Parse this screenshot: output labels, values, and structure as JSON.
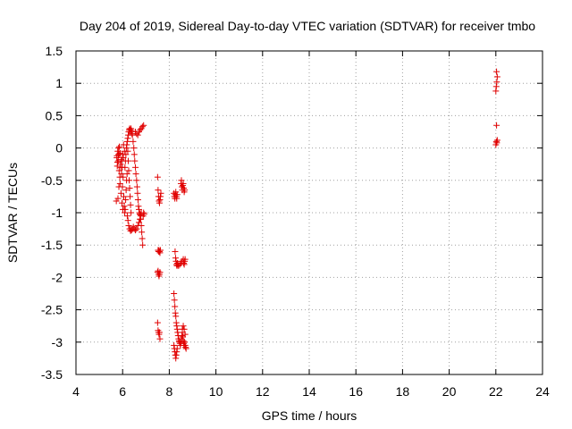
{
  "chart_data": {
    "type": "scatter",
    "title": "Day 204 of 2019, Sidereal Day-to-day VTEC variation (SDTVAR) for receiver tmbo",
    "xlabel": "GPS time / hours",
    "ylabel": "SDTVAR / TECUs",
    "xlim": [
      4,
      24
    ],
    "ylim": [
      -3.5,
      1.5
    ],
    "xticks": [
      4,
      6,
      8,
      10,
      12,
      14,
      16,
      18,
      20,
      22,
      24
    ],
    "yticks": [
      -3.5,
      -3,
      -2.5,
      -2,
      -1.5,
      -1,
      -0.5,
      0,
      0.5,
      1,
      1.5
    ],
    "xtick_labels": [
      "4",
      "6",
      "8",
      "10",
      "12",
      "14",
      "16",
      "18",
      "20",
      "22",
      "24"
    ],
    "ytick_labels": [
      "-3.5",
      "-3",
      "-2.5",
      "-2",
      "-1.5",
      "-1",
      "-0.5",
      "0",
      "0.5",
      "1",
      "1.5"
    ],
    "grid": true,
    "marker": "+",
    "color": "#e00000",
    "series": [
      {
        "name": "SDTVAR",
        "points": [
          [
            5.73,
            -0.82
          ],
          [
            5.75,
            -0.15
          ],
          [
            5.77,
            -0.28
          ],
          [
            5.79,
            -0.05
          ],
          [
            5.81,
            -0.2
          ],
          [
            5.83,
            0.0
          ],
          [
            5.85,
            -0.35
          ],
          [
            5.87,
            -0.1
          ],
          [
            5.89,
            -0.55
          ],
          [
            5.91,
            -0.25
          ],
          [
            5.93,
            -0.7
          ],
          [
            5.95,
            -0.4
          ],
          [
            5.97,
            -0.85
          ],
          [
            5.99,
            -0.6
          ],
          [
            6.01,
            -0.95
          ],
          [
            6.03,
            -0.15
          ],
          [
            5.8,
            -0.78
          ],
          [
            5.84,
            -0.6
          ],
          [
            5.88,
            -0.45
          ],
          [
            5.92,
            -0.3
          ],
          [
            5.96,
            -0.2
          ],
          [
            6.0,
            -0.1
          ],
          [
            6.04,
            0.05
          ],
          [
            6.08,
            -0.05
          ],
          [
            6.05,
            -0.75
          ],
          [
            6.07,
            -0.9
          ],
          [
            6.09,
            -1.0
          ],
          [
            6.11,
            -0.95
          ],
          [
            6.13,
            -0.8
          ],
          [
            6.15,
            -0.65
          ],
          [
            6.17,
            -0.5
          ],
          [
            6.19,
            -0.4
          ],
          [
            6.1,
            -0.3
          ],
          [
            6.12,
            -0.2
          ],
          [
            6.14,
            -0.1
          ],
          [
            6.16,
            0.0
          ],
          [
            6.18,
            0.05
          ],
          [
            6.2,
            0.1
          ],
          [
            6.22,
            0.15
          ],
          [
            6.24,
            0.2
          ],
          [
            6.26,
            0.25
          ],
          [
            6.28,
            0.28
          ],
          [
            6.3,
            0.3
          ],
          [
            6.32,
            0.28
          ],
          [
            6.34,
            0.25
          ],
          [
            6.36,
            0.3
          ],
          [
            6.38,
            0.27
          ],
          [
            6.4,
            0.22
          ],
          [
            6.22,
            -0.05
          ],
          [
            6.24,
            -0.2
          ],
          [
            6.26,
            -0.35
          ],
          [
            6.28,
            -0.5
          ],
          [
            6.3,
            -0.62
          ],
          [
            6.32,
            -0.75
          ],
          [
            6.34,
            -0.88
          ],
          [
            6.36,
            -1.0
          ],
          [
            6.2,
            -1.05
          ],
          [
            6.23,
            -1.12
          ],
          [
            6.26,
            -1.2
          ],
          [
            6.3,
            -1.25
          ],
          [
            6.34,
            -1.28
          ],
          [
            6.38,
            -1.27
          ],
          [
            6.42,
            -1.25
          ],
          [
            6.46,
            -1.22
          ],
          [
            6.5,
            -1.25
          ],
          [
            6.55,
            -1.27
          ],
          [
            6.6,
            -1.25
          ],
          [
            6.65,
            -1.2
          ],
          [
            6.7,
            -1.15
          ],
          [
            6.74,
            -1.1
          ],
          [
            6.78,
            -1.05
          ],
          [
            6.8,
            -1.0
          ],
          [
            6.42,
            0.2
          ],
          [
            6.45,
            0.1
          ],
          [
            6.48,
            0.0
          ],
          [
            6.5,
            -0.1
          ],
          [
            6.52,
            -0.2
          ],
          [
            6.55,
            -0.3
          ],
          [
            6.57,
            -0.4
          ],
          [
            6.6,
            -0.5
          ],
          [
            6.62,
            -0.6
          ],
          [
            6.64,
            -0.7
          ],
          [
            6.66,
            -0.8
          ],
          [
            6.68,
            -0.9
          ],
          [
            6.7,
            -0.95
          ],
          [
            6.72,
            -1.0
          ],
          [
            6.74,
            -1.02
          ],
          [
            6.76,
            -1.03
          ],
          [
            6.55,
            0.25
          ],
          [
            6.6,
            0.22
          ],
          [
            6.65,
            0.2
          ],
          [
            6.7,
            0.25
          ],
          [
            6.75,
            0.28
          ],
          [
            6.8,
            0.3
          ],
          [
            6.85,
            0.33
          ],
          [
            6.9,
            0.35
          ],
          [
            6.78,
            -1.1
          ],
          [
            6.8,
            -1.2
          ],
          [
            6.82,
            -1.3
          ],
          [
            6.84,
            -1.4
          ],
          [
            6.86,
            -1.5
          ],
          [
            6.88,
            -1.05
          ],
          [
            6.9,
            -1.0
          ],
          [
            6.92,
            -1.02
          ],
          [
            5.76,
            -0.12
          ],
          [
            5.78,
            -0.22
          ],
          [
            5.82,
            -0.1
          ],
          [
            5.86,
            0.02
          ],
          [
            5.9,
            -0.08
          ],
          [
            5.94,
            -0.18
          ],
          [
            5.98,
            -0.3
          ],
          [
            6.02,
            -0.45
          ],
          [
            7.5,
            -0.45
          ],
          [
            7.52,
            -0.65
          ],
          [
            7.54,
            -0.75
          ],
          [
            7.56,
            -0.82
          ],
          [
            7.58,
            -0.85
          ],
          [
            7.6,
            -0.8
          ],
          [
            7.62,
            -0.75
          ],
          [
            7.64,
            -0.7
          ],
          [
            7.52,
            -1.58
          ],
          [
            7.54,
            -1.6
          ],
          [
            7.56,
            -1.58
          ],
          [
            7.58,
            -1.6
          ],
          [
            7.6,
            -1.62
          ],
          [
            7.62,
            -1.58
          ],
          [
            7.5,
            -1.92
          ],
          [
            7.52,
            -1.9
          ],
          [
            7.54,
            -1.95
          ],
          [
            7.56,
            -1.98
          ],
          [
            7.58,
            -1.95
          ],
          [
            7.6,
            -1.92
          ],
          [
            7.5,
            -2.7
          ],
          [
            7.52,
            -2.82
          ],
          [
            7.54,
            -2.85
          ],
          [
            7.56,
            -2.88
          ],
          [
            7.58,
            -2.85
          ],
          [
            7.6,
            -2.95
          ],
          [
            8.2,
            -0.7
          ],
          [
            8.22,
            -0.75
          ],
          [
            8.24,
            -0.78
          ],
          [
            8.26,
            -0.72
          ],
          [
            8.28,
            -0.68
          ],
          [
            8.3,
            -0.75
          ],
          [
            8.32,
            -0.78
          ],
          [
            8.34,
            -0.72
          ],
          [
            8.5,
            -0.55
          ],
          [
            8.52,
            -0.5
          ],
          [
            8.54,
            -0.6
          ],
          [
            8.56,
            -0.65
          ],
          [
            8.58,
            -0.58
          ],
          [
            8.6,
            -0.55
          ],
          [
            8.62,
            -0.62
          ],
          [
            8.64,
            -0.68
          ],
          [
            8.66,
            -0.65
          ],
          [
            8.25,
            -1.6
          ],
          [
            8.27,
            -1.7
          ],
          [
            8.29,
            -1.75
          ],
          [
            8.31,
            -1.8
          ],
          [
            8.33,
            -1.82
          ],
          [
            8.35,
            -1.78
          ],
          [
            8.37,
            -1.8
          ],
          [
            8.4,
            -1.82
          ],
          [
            8.45,
            -1.8
          ],
          [
            8.5,
            -1.78
          ],
          [
            8.55,
            -1.75
          ],
          [
            8.6,
            -1.72
          ],
          [
            8.62,
            -1.78
          ],
          [
            8.64,
            -1.8
          ],
          [
            8.66,
            -1.75
          ],
          [
            8.68,
            -1.72
          ],
          [
            8.2,
            -2.25
          ],
          [
            8.22,
            -2.35
          ],
          [
            8.24,
            -2.45
          ],
          [
            8.26,
            -2.55
          ],
          [
            8.28,
            -2.6
          ],
          [
            8.3,
            -2.7
          ],
          [
            8.32,
            -2.75
          ],
          [
            8.34,
            -2.8
          ],
          [
            8.36,
            -2.85
          ],
          [
            8.38,
            -2.9
          ],
          [
            8.4,
            -2.95
          ],
          [
            8.42,
            -2.98
          ],
          [
            8.44,
            -3.0
          ],
          [
            8.46,
            -3.02
          ],
          [
            8.48,
            -3.05
          ],
          [
            8.5,
            -3.0
          ],
          [
            8.2,
            -3.05
          ],
          [
            8.22,
            -3.1
          ],
          [
            8.24,
            -3.15
          ],
          [
            8.26,
            -3.2
          ],
          [
            8.28,
            -3.25
          ],
          [
            8.3,
            -3.2
          ],
          [
            8.32,
            -3.15
          ],
          [
            8.34,
            -3.1
          ],
          [
            8.52,
            -2.95
          ],
          [
            8.54,
            -2.9
          ],
          [
            8.56,
            -2.85
          ],
          [
            8.58,
            -2.92
          ],
          [
            8.6,
            -2.98
          ],
          [
            8.62,
            -3.02
          ],
          [
            8.64,
            -3.05
          ],
          [
            8.66,
            -3.0
          ],
          [
            8.68,
            -3.05
          ],
          [
            8.7,
            -3.08
          ],
          [
            8.72,
            -3.1
          ],
          [
            8.56,
            -2.8
          ],
          [
            8.6,
            -2.75
          ],
          [
            8.64,
            -2.8
          ],
          [
            8.68,
            -2.88
          ],
          [
            22.0,
            0.05
          ],
          [
            22.02,
            0.1
          ],
          [
            22.04,
            0.08
          ],
          [
            22.06,
            0.12
          ],
          [
            22.03,
            0.35
          ],
          [
            22.0,
            0.88
          ],
          [
            22.02,
            0.95
          ],
          [
            22.04,
            1.02
          ],
          [
            22.06,
            1.1
          ],
          [
            22.03,
            1.18
          ]
        ]
      }
    ]
  }
}
